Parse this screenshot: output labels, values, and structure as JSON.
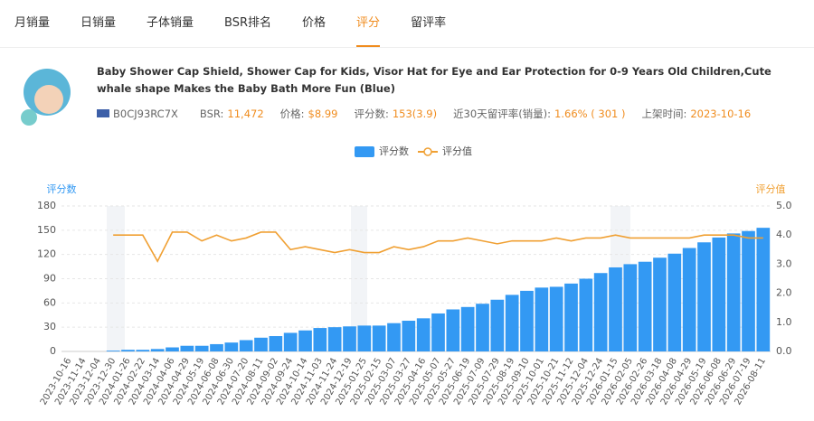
{
  "tabs": [
    "月销量",
    "日销量",
    "子体销量",
    "BSR排名",
    "价格",
    "评分",
    "留评率"
  ],
  "active_tab": "评分",
  "product": {
    "title": "Baby Shower Cap Shield, Shower Cap for Kids, Visor Hat for Eye and Ear Protection for 0-9 Years Old Children,Cute whale shape Makes the Baby Bath More Fun (Blue)",
    "asin": "B0CJ93RC7X",
    "fields": [
      {
        "label": "BSR:",
        "value": "11,472"
      },
      {
        "label": "价格:",
        "value": "$8.99"
      },
      {
        "label": "评分数:",
        "value": "153(3.9)"
      },
      {
        "label": "近30天留评率(销量):",
        "value": "1.66% ( 301 )"
      },
      {
        "label": "上架时间:",
        "value": "2023-10-16"
      }
    ]
  },
  "chart_data": {
    "type": "bar-line",
    "y_label": "评分数",
    "y2_label": "评分值",
    "categories": [
      "2023-10-16",
      "2023-11-14",
      "2023-12-04",
      "2023-12-30",
      "2024-01-26",
      "2024-02-22",
      "2024-03-14",
      "2024-04-06",
      "2024-04-29",
      "2024-05-19",
      "2024-06-08",
      "2024-06-30",
      "2024-07-20",
      "2024-08-11",
      "2024-09-02",
      "2024-09-24",
      "2024-10-14",
      "2024-11-03",
      "2024-11-24",
      "2024-12-19",
      "2025-01-25",
      "2025-02-15",
      "2025-03-07",
      "2025-03-27",
      "2025-04-16",
      "2025-05-07",
      "2025-05-27",
      "2025-06-19",
      "2025-07-09",
      "2025-07-29",
      "2025-08-19",
      "2025-09-10",
      "2025-10-01",
      "2025-10-21",
      "2025-11-12",
      "2025-12-04",
      "2025-12-24",
      "2026-01-15",
      "2026-02-05",
      "2026-02-26",
      "2026-03-18",
      "2026-04-08",
      "2026-04-29",
      "2026-05-19",
      "2026-06-08",
      "2026-06-29",
      "2026-07-19",
      "2026-08-11"
    ],
    "series": [
      {
        "name": "评分数",
        "color": "#3399f3",
        "type": "bar",
        "values": [
          0,
          0,
          0,
          1,
          2,
          2,
          3,
          5,
          7,
          7,
          9,
          11,
          14,
          17,
          19,
          23,
          26,
          29,
          30,
          31,
          32,
          32,
          35,
          38,
          41,
          47,
          52,
          55,
          59,
          64,
          70,
          75,
          79,
          80,
          84,
          90,
          97,
          104,
          108,
          111,
          116,
          121,
          128,
          135,
          141,
          146,
          149,
          153
        ]
      },
      {
        "name": "评分值",
        "color": "#f0a033",
        "type": "line",
        "axis": "y2",
        "values": [
          null,
          null,
          null,
          4.0,
          4.0,
          4.0,
          3.1,
          4.1,
          4.1,
          3.8,
          4.0,
          3.8,
          3.9,
          4.1,
          4.1,
          3.5,
          3.6,
          3.5,
          3.4,
          3.5,
          3.4,
          3.4,
          3.6,
          3.5,
          3.6,
          3.8,
          3.8,
          3.9,
          3.8,
          3.7,
          3.8,
          3.8,
          3.8,
          3.9,
          3.8,
          3.9,
          3.9,
          4.0,
          3.9,
          3.9,
          3.9,
          3.9,
          3.9,
          4.0,
          4.0,
          4.0,
          3.9,
          3.9
        ]
      }
    ],
    "ylim": [
      0,
      180
    ],
    "yticks": [
      0,
      30,
      60,
      90,
      120,
      150,
      180
    ],
    "y2lim": [
      0,
      5
    ],
    "y2ticks": [
      {
        "value": 0,
        "label": "0.0"
      },
      {
        "value": 1,
        "label": "1.0"
      },
      {
        "value": 2,
        "label": "2.0"
      },
      {
        "value": 3,
        "label": "3.0"
      },
      {
        "value": 4,
        "label": "4.0"
      },
      {
        "value": 5,
        "label": "5.0"
      }
    ],
    "grid": true
  }
}
